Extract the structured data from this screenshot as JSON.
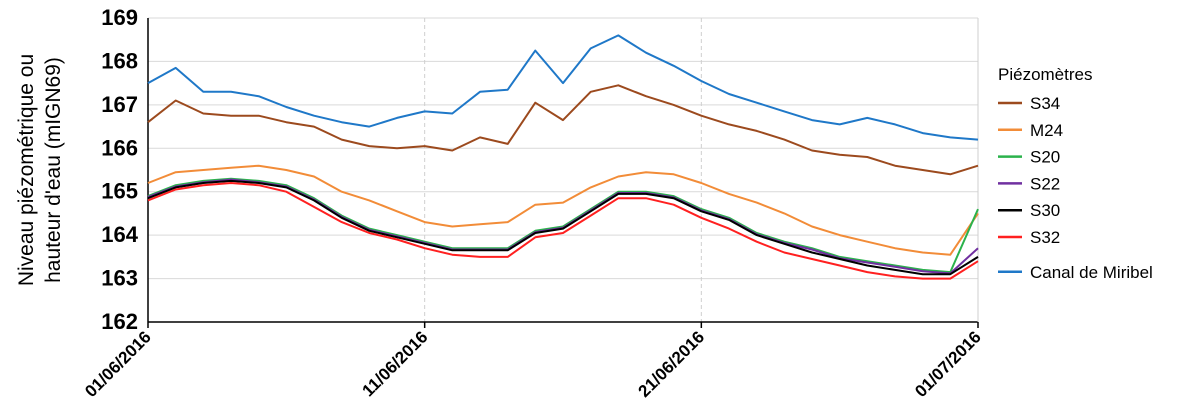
{
  "chart_data": {
    "type": "line",
    "ylabel_lines": [
      "Niveau piézométrique ou",
      "hauteur d'eau (mIGN69)"
    ],
    "ylim": [
      162,
      169
    ],
    "yticks": [
      162,
      163,
      164,
      165,
      166,
      167,
      168,
      169
    ],
    "xlim": [
      "01/06/2016",
      "01/07/2016"
    ],
    "xticks": [
      "01/06/2016",
      "11/06/2016",
      "21/06/2016",
      "01/07/2016"
    ],
    "grid": true,
    "legend_title": "Piézomètres",
    "legend_position": "right",
    "series": [
      {
        "name": "S34",
        "color": "#9C4A1E",
        "x": [
          "01/06/2016",
          "02/06/2016",
          "03/06/2016",
          "04/06/2016",
          "05/06/2016",
          "06/06/2016",
          "07/06/2016",
          "08/06/2016",
          "09/06/2016",
          "10/06/2016",
          "11/06/2016",
          "12/06/2016",
          "13/06/2016",
          "14/06/2016",
          "15/06/2016",
          "16/06/2016",
          "17/06/2016",
          "18/06/2016",
          "19/06/2016",
          "20/06/2016",
          "21/06/2016",
          "22/06/2016",
          "23/06/2016",
          "24/06/2016",
          "25/06/2016",
          "26/06/2016",
          "27/06/2016",
          "28/06/2016",
          "29/06/2016",
          "30/06/2016",
          "01/07/2016"
        ],
        "y": [
          166.6,
          167.1,
          166.8,
          166.75,
          166.75,
          166.6,
          166.5,
          166.2,
          166.05,
          166.0,
          166.05,
          165.95,
          166.25,
          166.1,
          167.05,
          166.65,
          167.3,
          167.45,
          167.2,
          167.0,
          166.75,
          166.55,
          166.4,
          166.2,
          165.95,
          165.85,
          165.8,
          165.6,
          165.5,
          165.4,
          165.6
        ]
      },
      {
        "name": "M24",
        "color": "#F28C38",
        "x": [
          "01/06/2016",
          "02/06/2016",
          "03/06/2016",
          "04/06/2016",
          "05/06/2016",
          "06/06/2016",
          "07/06/2016",
          "08/06/2016",
          "09/06/2016",
          "10/06/2016",
          "11/06/2016",
          "12/06/2016",
          "13/06/2016",
          "14/06/2016",
          "15/06/2016",
          "16/06/2016",
          "17/06/2016",
          "18/06/2016",
          "19/06/2016",
          "20/06/2016",
          "21/06/2016",
          "22/06/2016",
          "23/06/2016",
          "24/06/2016",
          "25/06/2016",
          "26/06/2016",
          "27/06/2016",
          "28/06/2016",
          "29/06/2016",
          "30/06/2016",
          "01/07/2016"
        ],
        "y": [
          165.2,
          165.45,
          165.5,
          165.55,
          165.6,
          165.5,
          165.35,
          165.0,
          164.8,
          164.55,
          164.3,
          164.2,
          164.25,
          164.3,
          164.7,
          164.75,
          165.1,
          165.35,
          165.45,
          165.4,
          165.2,
          164.95,
          164.75,
          164.5,
          164.2,
          164.0,
          163.85,
          163.7,
          163.6,
          163.55,
          164.5
        ]
      },
      {
        "name": "S20",
        "color": "#2BB24C",
        "x": [
          "01/06/2016",
          "02/06/2016",
          "03/06/2016",
          "04/06/2016",
          "05/06/2016",
          "06/06/2016",
          "07/06/2016",
          "08/06/2016",
          "09/06/2016",
          "10/06/2016",
          "11/06/2016",
          "12/06/2016",
          "13/06/2016",
          "14/06/2016",
          "15/06/2016",
          "16/06/2016",
          "17/06/2016",
          "18/06/2016",
          "19/06/2016",
          "20/06/2016",
          "21/06/2016",
          "22/06/2016",
          "23/06/2016",
          "24/06/2016",
          "25/06/2016",
          "26/06/2016",
          "27/06/2016",
          "28/06/2016",
          "29/06/2016",
          "30/06/2016",
          "01/07/2016"
        ],
        "y": [
          164.9,
          165.15,
          165.25,
          165.3,
          165.25,
          165.15,
          164.85,
          164.45,
          164.15,
          164.0,
          163.85,
          163.7,
          163.7,
          163.7,
          164.1,
          164.2,
          164.6,
          165.0,
          165.0,
          164.9,
          164.6,
          164.4,
          164.05,
          163.85,
          163.7,
          163.5,
          163.4,
          163.3,
          163.2,
          163.15,
          164.6
        ]
      },
      {
        "name": "S22",
        "color": "#7030A0",
        "x": [
          "01/06/2016",
          "02/06/2016",
          "03/06/2016",
          "04/06/2016",
          "05/06/2016",
          "06/06/2016",
          "07/06/2016",
          "08/06/2016",
          "09/06/2016",
          "10/06/2016",
          "11/06/2016",
          "12/06/2016",
          "13/06/2016",
          "14/06/2016",
          "15/06/2016",
          "16/06/2016",
          "17/06/2016",
          "18/06/2016",
          "19/06/2016",
          "20/06/2016",
          "21/06/2016",
          "22/06/2016",
          "23/06/2016",
          "24/06/2016",
          "25/06/2016",
          "26/06/2016",
          "27/06/2016",
          "28/06/2016",
          "29/06/2016",
          "30/06/2016",
          "01/07/2016"
        ],
        "y": [
          164.88,
          165.12,
          165.22,
          165.28,
          165.22,
          165.12,
          164.82,
          164.42,
          164.12,
          163.97,
          163.82,
          163.67,
          163.67,
          163.67,
          164.07,
          164.17,
          164.57,
          164.97,
          164.97,
          164.87,
          164.57,
          164.37,
          164.02,
          163.82,
          163.67,
          163.47,
          163.37,
          163.27,
          163.17,
          163.12,
          163.7
        ]
      },
      {
        "name": "S30",
        "color": "#000000",
        "x": [
          "01/06/2016",
          "02/06/2016",
          "03/06/2016",
          "04/06/2016",
          "05/06/2016",
          "06/06/2016",
          "07/06/2016",
          "08/06/2016",
          "09/06/2016",
          "10/06/2016",
          "11/06/2016",
          "12/06/2016",
          "13/06/2016",
          "14/06/2016",
          "15/06/2016",
          "16/06/2016",
          "17/06/2016",
          "18/06/2016",
          "19/06/2016",
          "20/06/2016",
          "21/06/2016",
          "22/06/2016",
          "23/06/2016",
          "24/06/2016",
          "25/06/2016",
          "26/06/2016",
          "27/06/2016",
          "28/06/2016",
          "29/06/2016",
          "30/06/2016",
          "01/07/2016"
        ],
        "y": [
          164.85,
          165.1,
          165.2,
          165.25,
          165.2,
          165.1,
          164.8,
          164.4,
          164.1,
          163.95,
          163.8,
          163.65,
          163.65,
          163.65,
          164.05,
          164.15,
          164.55,
          164.95,
          164.95,
          164.85,
          164.55,
          164.35,
          164.0,
          163.8,
          163.6,
          163.45,
          163.3,
          163.2,
          163.1,
          163.1,
          163.5
        ]
      },
      {
        "name": "S32",
        "color": "#FF2020",
        "x": [
          "01/06/2016",
          "02/06/2016",
          "03/06/2016",
          "04/06/2016",
          "05/06/2016",
          "06/06/2016",
          "07/06/2016",
          "08/06/2016",
          "09/06/2016",
          "10/06/2016",
          "11/06/2016",
          "12/06/2016",
          "13/06/2016",
          "14/06/2016",
          "15/06/2016",
          "16/06/2016",
          "17/06/2016",
          "18/06/2016",
          "19/06/2016",
          "20/06/2016",
          "21/06/2016",
          "22/06/2016",
          "23/06/2016",
          "24/06/2016",
          "25/06/2016",
          "26/06/2016",
          "27/06/2016",
          "28/06/2016",
          "29/06/2016",
          "30/06/2016",
          "01/07/2016"
        ],
        "y": [
          164.8,
          165.05,
          165.15,
          165.2,
          165.15,
          165.0,
          164.65,
          164.3,
          164.05,
          163.9,
          163.7,
          163.55,
          163.5,
          163.5,
          163.95,
          164.05,
          164.45,
          164.85,
          164.85,
          164.7,
          164.4,
          164.15,
          163.85,
          163.6,
          163.45,
          163.3,
          163.15,
          163.05,
          163.0,
          163.0,
          163.4
        ]
      },
      {
        "name": "Canal de Miribel",
        "color": "#1F78C8",
        "x": [
          "01/06/2016",
          "02/06/2016",
          "03/06/2016",
          "04/06/2016",
          "05/06/2016",
          "06/06/2016",
          "07/06/2016",
          "08/06/2016",
          "09/06/2016",
          "10/06/2016",
          "11/06/2016",
          "12/06/2016",
          "13/06/2016",
          "14/06/2016",
          "15/06/2016",
          "16/06/2016",
          "17/06/2016",
          "18/06/2016",
          "19/06/2016",
          "20/06/2016",
          "21/06/2016",
          "22/06/2016",
          "23/06/2016",
          "24/06/2016",
          "25/06/2016",
          "26/06/2016",
          "27/06/2016",
          "28/06/2016",
          "29/06/2016",
          "30/06/2016",
          "01/07/2016"
        ],
        "y": [
          167.5,
          167.85,
          167.3,
          167.3,
          167.2,
          166.95,
          166.75,
          166.6,
          166.5,
          166.7,
          166.85,
          166.8,
          167.3,
          167.35,
          168.25,
          167.5,
          168.3,
          168.6,
          168.2,
          167.9,
          167.55,
          167.25,
          167.05,
          166.85,
          166.65,
          166.55,
          166.7,
          166.55,
          166.35,
          166.25,
          166.2
        ]
      }
    ]
  }
}
